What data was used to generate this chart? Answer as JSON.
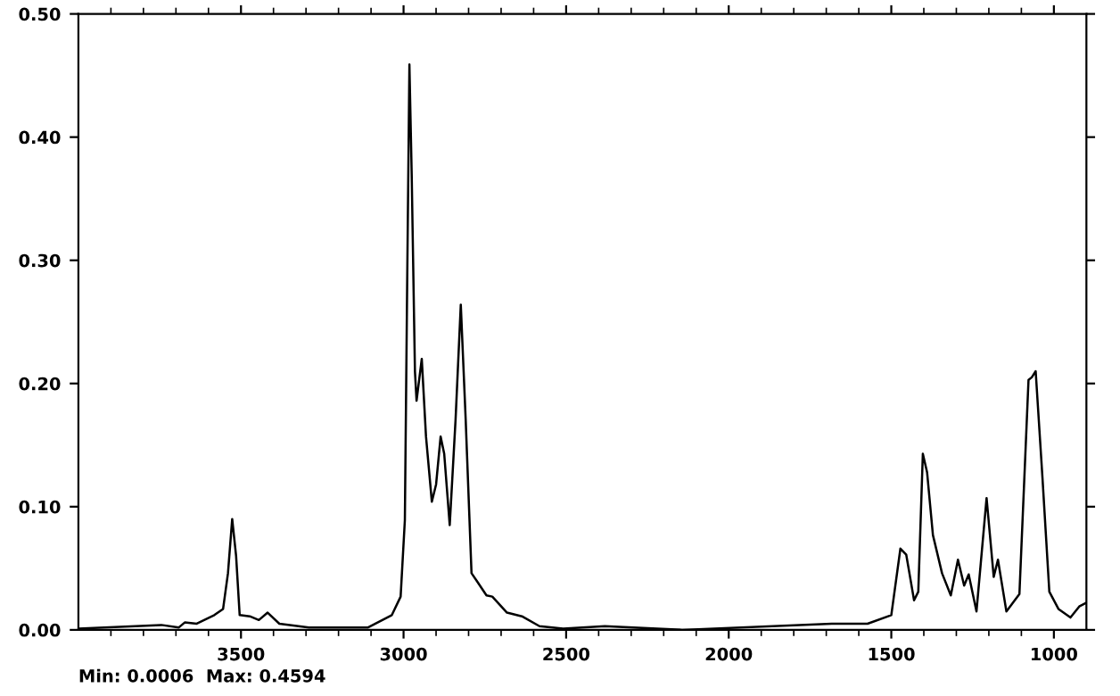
{
  "chart_data": {
    "type": "line",
    "x": [
      4000,
      3745,
      3691,
      3673,
      3636,
      3582,
      3555,
      3540,
      3527,
      3515,
      3504,
      3473,
      3445,
      3418,
      3382,
      3291,
      3109,
      3036,
      3009,
      2996,
      2989,
      2982,
      2975,
      2965,
      2960,
      2944,
      2931,
      2913,
      2900,
      2886,
      2875,
      2858,
      2840,
      2824,
      2809,
      2791,
      2773,
      2745,
      2727,
      2682,
      2636,
      2582,
      2509,
      2381,
      2143,
      1683,
      1573,
      1500,
      1472,
      1454,
      1430,
      1417,
      1403,
      1390,
      1372,
      1344,
      1317,
      1295,
      1276,
      1262,
      1238,
      1207,
      1185,
      1172,
      1146,
      1106,
      1078,
      1068,
      1056,
      1035,
      1014,
      986,
      949,
      922,
      900
    ],
    "series": [
      {
        "color": "#000000",
        "values": [
          0.001,
          0.004,
          0.002,
          0.006,
          0.005,
          0.012,
          0.017,
          0.046,
          0.09,
          0.06,
          0.012,
          0.011,
          0.008,
          0.014,
          0.005,
          0.002,
          0.002,
          0.012,
          0.027,
          0.089,
          0.278,
          0.459,
          0.37,
          0.21,
          0.186,
          0.22,
          0.157,
          0.104,
          0.118,
          0.157,
          0.143,
          0.085,
          0.171,
          0.264,
          0.171,
          0.046,
          0.039,
          0.028,
          0.027,
          0.014,
          0.011,
          0.003,
          0.001,
          0.003,
          0.0,
          0.005,
          0.005,
          0.012,
          0.066,
          0.061,
          0.024,
          0.031,
          0.143,
          0.128,
          0.077,
          0.046,
          0.028,
          0.057,
          0.036,
          0.045,
          0.015,
          0.107,
          0.043,
          0.057,
          0.015,
          0.029,
          0.203,
          0.205,
          0.21,
          0.123,
          0.031,
          0.017,
          0.01,
          0.019,
          0.022
        ]
      }
    ],
    "xlim": [
      4000,
      900
    ],
    "ylim": [
      0,
      0.5
    ],
    "xticks": [
      {
        "value": 3900,
        "label": null
      },
      {
        "value": 3800,
        "label": null
      },
      {
        "value": 3700,
        "label": null
      },
      {
        "value": 3600,
        "label": null
      },
      3500,
      {
        "value": 3400,
        "label": null
      },
      {
        "value": 3300,
        "label": null
      },
      {
        "value": 3200,
        "label": null
      },
      {
        "value": 3100,
        "label": null
      },
      3000,
      {
        "value": 2900,
        "label": null
      },
      {
        "value": 2800,
        "label": null
      },
      {
        "value": 2700,
        "label": null
      },
      {
        "value": 2600,
        "label": null
      },
      2500,
      {
        "value": 2400,
        "label": null
      },
      {
        "value": 2300,
        "label": null
      },
      {
        "value": 2200,
        "label": null
      },
      {
        "value": 2100,
        "label": null
      },
      2000,
      {
        "value": 1900,
        "label": null
      },
      {
        "value": 1800,
        "label": null
      },
      {
        "value": 1700,
        "label": null
      },
      {
        "value": 1600,
        "label": null
      },
      1500,
      {
        "value": 1400,
        "label": null
      },
      {
        "value": 1300,
        "label": null
      },
      {
        "value": 1200,
        "label": null
      },
      {
        "value": 1100,
        "label": null
      },
      1000
    ],
    "yticks": [
      {
        "value": 0,
        "label": "0.00"
      },
      {
        "value": 0.1,
        "label": "0.10"
      },
      {
        "value": 0.2,
        "label": "0.20"
      },
      {
        "value": 0.3,
        "label": "0.30"
      },
      {
        "value": 0.4,
        "label": "0.40"
      },
      {
        "value": 0.5,
        "label": "0.50"
      }
    ],
    "annotations": [
      "Min: 0.0006  Max: 0.4594"
    ],
    "grid": false,
    "marker": "none",
    "line_style": "solid"
  }
}
